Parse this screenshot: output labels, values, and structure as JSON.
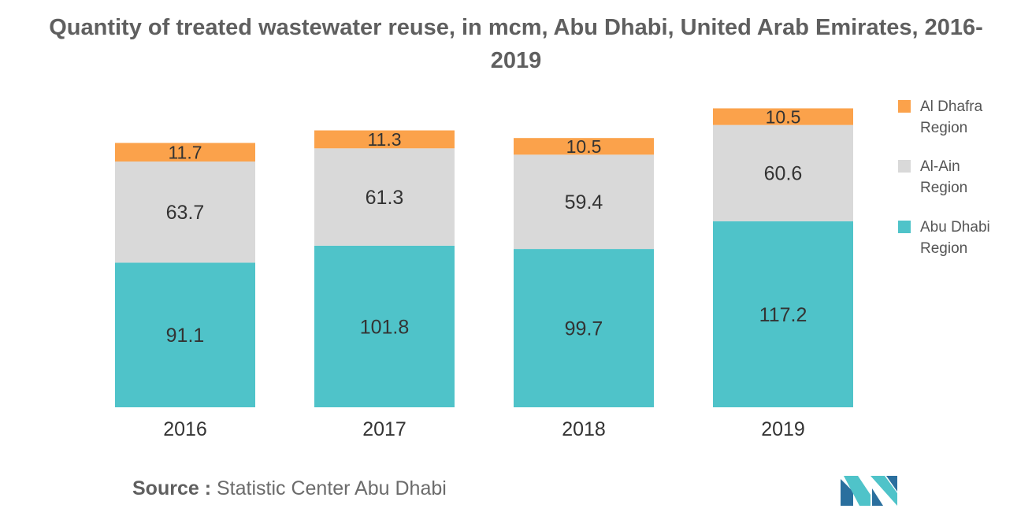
{
  "chart_data": {
    "type": "bar",
    "stacked": true,
    "title": "Quantity of treated wastewater reuse, in mcm, Abu Dhabi, United Arab Emirates, 2016-2019",
    "categories": [
      "2016",
      "2017",
      "2018",
      "2019"
    ],
    "series": [
      {
        "name": "Abu Dhabi Region",
        "color": "#4fc3c9",
        "values": [
          91.1,
          101.8,
          99.7,
          117.2
        ]
      },
      {
        "name": "Al-Ain Region",
        "color": "#d9d9d9",
        "values": [
          63.7,
          61.3,
          59.4,
          60.6
        ]
      },
      {
        "name": "Al Dhafra Region",
        "color": "#fba24b",
        "values": [
          11.7,
          11.3,
          10.5,
          10.5
        ]
      }
    ],
    "ylim": [
      0,
      195
    ],
    "xlabel": "",
    "ylabel": "",
    "grid": false,
    "legend": "right"
  },
  "title_line1": "Quantity of treated wastewater reuse, in mcm, Abu Dhabi, United Arab Emirates, 2016-",
  "title_line2": "2019",
  "legend_items": [
    {
      "line1": "Al Dhafra",
      "line2": "Region",
      "color": "#fba24b"
    },
    {
      "line1": "Al-Ain",
      "line2": "Region",
      "color": "#d9d9d9"
    },
    {
      "line1": "Abu Dhabi",
      "line2": "Region",
      "color": "#4fc3c9"
    }
  ],
  "source": {
    "label": "Source :",
    "text": "Statistic Center Abu Dhabi"
  },
  "logo": {
    "icon": "mordor-intelligence-logo",
    "color": "#4fc3c9"
  }
}
